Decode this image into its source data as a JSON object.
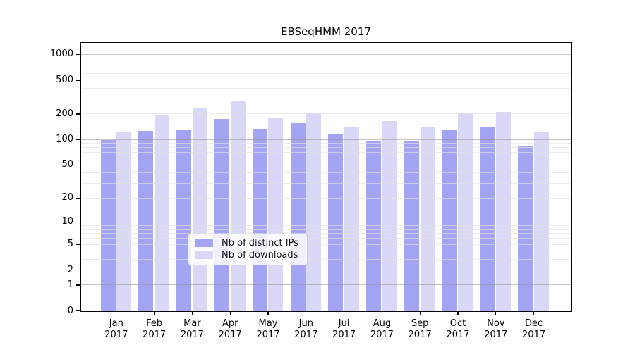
{
  "chart_data": {
    "type": "bar",
    "title": "EBSeqHMM 2017",
    "year": "2017",
    "months": [
      "Jan",
      "Feb",
      "Mar",
      "Apr",
      "May",
      "Jun",
      "Jul",
      "Aug",
      "Sep",
      "Oct",
      "Nov",
      "Dec"
    ],
    "series": [
      {
        "name": "Nb of distinct IPs",
        "color": "#a4a4f4",
        "values": [
          100,
          128,
          132,
          175,
          134,
          157,
          117,
          97,
          97,
          131,
          140,
          83
        ]
      },
      {
        "name": "Nb of downloads",
        "color": "#d9d9f7",
        "values": [
          122,
          195,
          235,
          292,
          183,
          211,
          144,
          168,
          140,
          205,
          212,
          125
        ]
      }
    ],
    "yticks": [
      0,
      1,
      2,
      5,
      10,
      20,
      50,
      100,
      200,
      500,
      1000
    ],
    "major_gridlines": [
      1,
      10,
      100,
      1000
    ],
    "minor_gridlines": [
      2,
      3,
      4,
      5,
      6,
      7,
      8,
      9,
      20,
      30,
      40,
      50,
      60,
      70,
      80,
      90,
      200,
      300,
      400,
      500,
      600,
      700,
      800,
      900
    ],
    "scale": "log1p",
    "ylim": [
      0,
      1350
    ],
    "legend_position": "lower-center",
    "grid": "on",
    "xlabel": "",
    "ylabel": ""
  },
  "colors": {
    "background": "#ffffff",
    "axis": "#000000",
    "grid_major": "#919191",
    "grid_minor": "#e0e0e0",
    "legend_border": "#c9c9c9"
  }
}
